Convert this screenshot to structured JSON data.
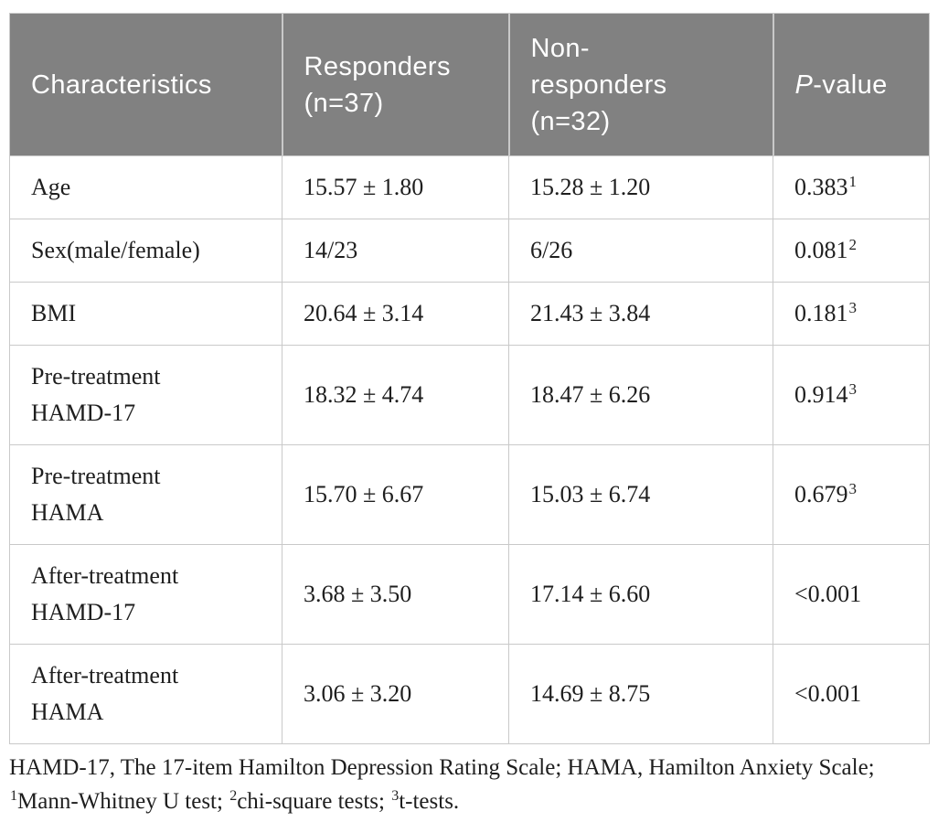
{
  "table": {
    "header": {
      "bg_color": "#818181",
      "text_color": "#ffffff",
      "characteristics_label": "Characteristics",
      "responders_label": "Responders\n(n=37)",
      "non_responders_label": "Non-\nresponders\n(n=32)",
      "p_value_italic_part": "P",
      "p_value_rest_part": "-value"
    },
    "rows": [
      {
        "label": "Age",
        "responders": "15.57 ± 1.80",
        "non_responders": "15.28 ± 1.20",
        "p_value": "0.383",
        "p_sup": "1"
      },
      {
        "label": "Sex(male/female)",
        "responders": "14/23",
        "non_responders": "6/26",
        "p_value": "0.081",
        "p_sup": "2"
      },
      {
        "label": "BMI",
        "responders": "20.64 ± 3.14",
        "non_responders": "21.43 ± 3.84",
        "p_value": "0.181",
        "p_sup": "3"
      },
      {
        "label": "Pre-treatment\nHAMD-17",
        "responders": "18.32 ± 4.74",
        "non_responders": "18.47 ± 6.26",
        "p_value": "0.914",
        "p_sup": "3"
      },
      {
        "label": "Pre-treatment\nHAMA",
        "responders": "15.70 ± 6.67",
        "non_responders": "15.03 ± 6.74",
        "p_value": "0.679",
        "p_sup": "3"
      },
      {
        "label": "After-treatment\nHAMD-17",
        "responders": "3.68 ± 3.50",
        "non_responders": "17.14 ± 6.60",
        "p_value": "<0.001",
        "p_sup": ""
      },
      {
        "label": "After-treatment\nHAMA",
        "responders": "3.06 ± 3.20",
        "non_responders": "14.69 ± 8.75",
        "p_value": "<0.001",
        "p_sup": ""
      }
    ]
  },
  "footnote": {
    "line1": "HAMD-17, The 17-item Hamilton Depression Rating Scale; HAMA, Hamilton Anxiety Scale;",
    "segments": [
      {
        "sup": "1",
        "text": "Mann-Whitney U test; "
      },
      {
        "sup": "2",
        "text": "chi-square tests; "
      },
      {
        "sup": "3",
        "text": "t-tests."
      }
    ]
  }
}
